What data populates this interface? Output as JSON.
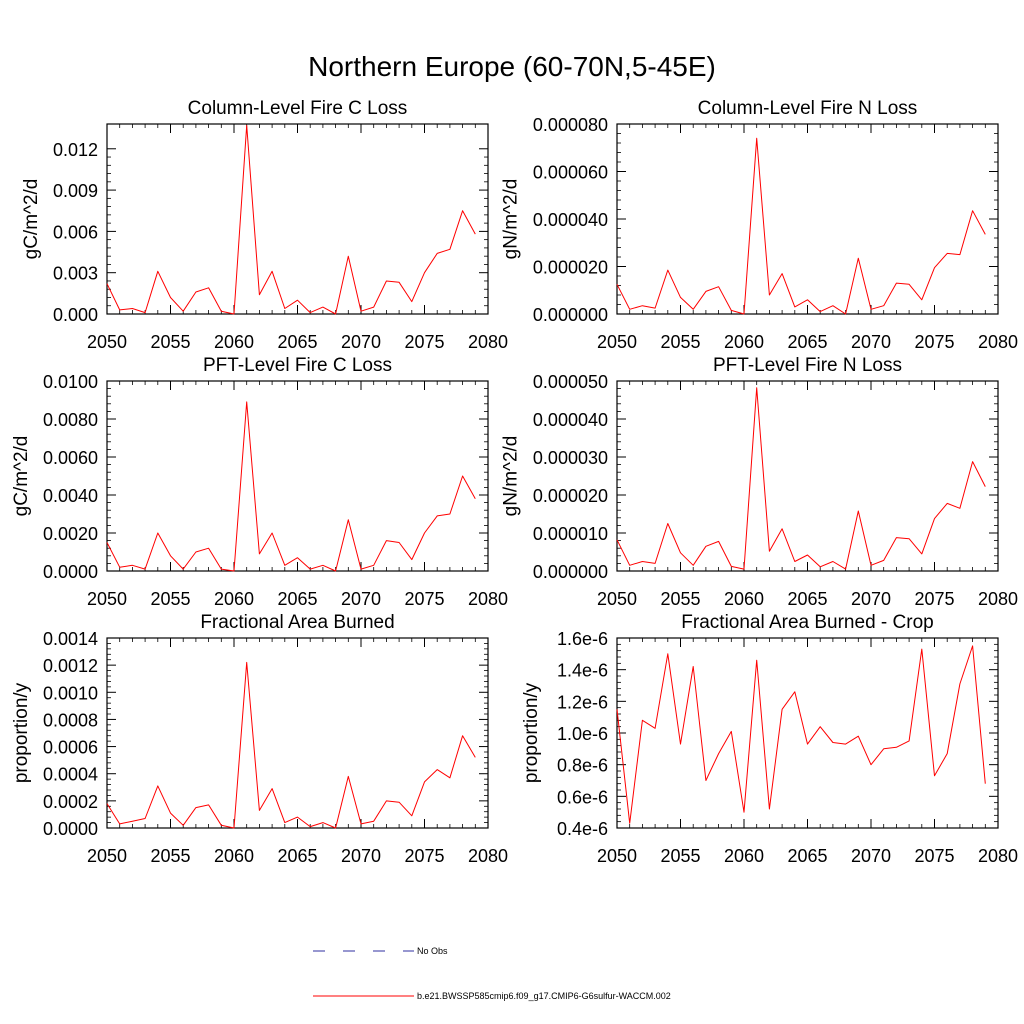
{
  "figure_title": "Northern Europe (60-70N,5-45E)",
  "legend": [
    {
      "label": "No Obs",
      "color": "#2f2fa0",
      "dash": true
    },
    {
      "label": "b.e21.BWSSP585cmip6.f09_g17.CMIP6-G6sulfur-WACCM.002",
      "color": "#ff0000",
      "dash": false
    }
  ],
  "chart_data": [
    {
      "type": "line",
      "title": "Column-Level Fire C Loss",
      "ylabel": "gC/m^2/d",
      "xlabel": "",
      "xlim": [
        2050,
        2080
      ],
      "xticks": [
        2050,
        2055,
        2060,
        2065,
        2070,
        2075,
        2080
      ],
      "ylim": [
        0,
        0.0138
      ],
      "yticks": [
        0,
        0.003,
        0.006,
        0.009,
        0.012
      ],
      "ytick_labels": [
        "0.000",
        "0.003",
        "0.006",
        "0.009",
        "0.012"
      ],
      "x": [
        2050,
        2051,
        2052,
        2053,
        2054,
        2055,
        2056,
        2057,
        2058,
        2059,
        2060,
        2061,
        2062,
        2063,
        2064,
        2065,
        2066,
        2067,
        2068,
        2069,
        2070,
        2071,
        2072,
        2073,
        2074,
        2075,
        2076,
        2077,
        2078,
        2079
      ],
      "series": [
        {
          "name": "b.e21.BWSSP585cmip6.f09_g17.CMIP6-G6sulfur-WACCM.002",
          "color": "#ff0000",
          "values": [
            0.0022,
            0.0003,
            0.0004,
            0.0001,
            0.0031,
            0.0012,
            0.0002,
            0.0016,
            0.0019,
            0.0002,
            0.0,
            0.0137,
            0.0014,
            0.0031,
            0.0004,
            0.001,
            0.0001,
            0.0005,
            0.0,
            0.0042,
            0.0002,
            0.0005,
            0.0024,
            0.0023,
            0.0009,
            0.003,
            0.0044,
            0.0047,
            0.0075,
            0.0058
          ]
        }
      ]
    },
    {
      "type": "line",
      "title": "Column-Level Fire N Loss",
      "ylabel": "gN/m^2/d",
      "xlabel": "",
      "xlim": [
        2050,
        2080
      ],
      "xticks": [
        2050,
        2055,
        2060,
        2065,
        2070,
        2075,
        2080
      ],
      "ylim": [
        0,
        8e-05
      ],
      "yticks": [
        0,
        2e-05,
        4e-05,
        6e-05,
        8e-05
      ],
      "ytick_labels": [
        "0.000000",
        "0.000020",
        "0.000040",
        "0.000060",
        "0.000080"
      ],
      "x": [
        2050,
        2051,
        2052,
        2053,
        2054,
        2055,
        2056,
        2057,
        2058,
        2059,
        2060,
        2061,
        2062,
        2063,
        2064,
        2065,
        2066,
        2067,
        2068,
        2069,
        2070,
        2071,
        2072,
        2073,
        2074,
        2075,
        2076,
        2077,
        2078,
        2079
      ],
      "series": [
        {
          "name": "b.e21.BWSSP585cmip6.f09_g17.CMIP6-G6sulfur-WACCM.002",
          "color": "#ff0000",
          "values": [
            1.25e-05,
            2e-06,
            3.5e-06,
            2.5e-06,
            1.85e-05,
            7e-06,
            2e-06,
            9.5e-06,
            1.15e-05,
            1.5e-06,
            0.0,
            7.4e-05,
            8e-06,
            1.7e-05,
            3e-06,
            6e-06,
            1e-06,
            3.5e-06,
            0.0,
            2.35e-05,
            2e-06,
            3.5e-06,
            1.3e-05,
            1.25e-05,
            6e-06,
            1.95e-05,
            2.55e-05,
            2.5e-05,
            4.35e-05,
            3.35e-05
          ]
        }
      ]
    },
    {
      "type": "line",
      "title": "PFT-Level Fire C Loss",
      "ylabel": "gC/m^2/d",
      "xlabel": "",
      "xlim": [
        2050,
        2080
      ],
      "xticks": [
        2050,
        2055,
        2060,
        2065,
        2070,
        2075,
        2080
      ],
      "ylim": [
        0,
        0.01
      ],
      "yticks": [
        0,
        0.002,
        0.004,
        0.006,
        0.008,
        0.01
      ],
      "ytick_labels": [
        "0.0000",
        "0.0020",
        "0.0040",
        "0.0060",
        "0.0080",
        "0.0100"
      ],
      "x": [
        2050,
        2051,
        2052,
        2053,
        2054,
        2055,
        2056,
        2057,
        2058,
        2059,
        2060,
        2061,
        2062,
        2063,
        2064,
        2065,
        2066,
        2067,
        2068,
        2069,
        2070,
        2071,
        2072,
        2073,
        2074,
        2075,
        2076,
        2077,
        2078,
        2079
      ],
      "series": [
        {
          "name": "b.e21.BWSSP585cmip6.f09_g17.CMIP6-G6sulfur-WACCM.002",
          "color": "#ff0000",
          "values": [
            0.0015,
            0.0002,
            0.0003,
            0.0001,
            0.002,
            0.0008,
            0.0001,
            0.001,
            0.0012,
            0.0001,
            0.0,
            0.0089,
            0.0009,
            0.002,
            0.0003,
            0.0007,
            0.0001,
            0.0003,
            0.0,
            0.0027,
            0.0001,
            0.0003,
            0.0016,
            0.0015,
            0.0006,
            0.002,
            0.0029,
            0.003,
            0.005,
            0.0038
          ]
        }
      ]
    },
    {
      "type": "line",
      "title": "PFT-Level Fire N Loss",
      "ylabel": "gN/m^2/d",
      "xlabel": "",
      "xlim": [
        2050,
        2080
      ],
      "xticks": [
        2050,
        2055,
        2060,
        2065,
        2070,
        2075,
        2080
      ],
      "ylim": [
        0,
        5e-05
      ],
      "yticks": [
        0,
        1e-05,
        2e-05,
        3e-05,
        4e-05,
        5e-05
      ],
      "ytick_labels": [
        "0.000000",
        "0.000010",
        "0.000020",
        "0.000030",
        "0.000040",
        "0.000050"
      ],
      "x": [
        2050,
        2051,
        2052,
        2053,
        2054,
        2055,
        2056,
        2057,
        2058,
        2059,
        2060,
        2061,
        2062,
        2063,
        2064,
        2065,
        2066,
        2067,
        2068,
        2069,
        2070,
        2071,
        2072,
        2073,
        2074,
        2075,
        2076,
        2077,
        2078,
        2079
      ],
      "series": [
        {
          "name": "b.e21.BWSSP585cmip6.f09_g17.CMIP6-G6sulfur-WACCM.002",
          "color": "#ff0000",
          "values": [
            8.2e-06,
            1.5e-06,
            2.5e-06,
            2e-06,
            1.25e-05,
            4.8e-06,
            1.5e-06,
            6.5e-06,
            7.8e-06,
            1.2e-06,
            5e-07,
            4.82e-05,
            5.2e-06,
            1.11e-05,
            2.5e-06,
            4.2e-06,
            1.1e-06,
            2.5e-06,
            5e-07,
            1.58e-05,
            1.5e-06,
            2.8e-06,
            8.8e-06,
            8.5e-06,
            4.5e-06,
            1.38e-05,
            1.78e-05,
            1.65e-05,
            2.88e-05,
            2.22e-05
          ]
        }
      ]
    },
    {
      "type": "line",
      "title": "Fractional Area Burned",
      "ylabel": "proportion/y",
      "xlabel": "",
      "xlim": [
        2050,
        2080
      ],
      "xticks": [
        2050,
        2055,
        2060,
        2065,
        2070,
        2075,
        2080
      ],
      "ylim": [
        0,
        0.0014
      ],
      "yticks": [
        0,
        0.0002,
        0.0004,
        0.0006,
        0.0008,
        0.001,
        0.0012,
        0.0014
      ],
      "ytick_labels": [
        "0.0000",
        "0.0002",
        "0.0004",
        "0.0006",
        "0.0008",
        "0.0010",
        "0.0012",
        "0.0014"
      ],
      "x": [
        2050,
        2051,
        2052,
        2053,
        2054,
        2055,
        2056,
        2057,
        2058,
        2059,
        2060,
        2061,
        2062,
        2063,
        2064,
        2065,
        2066,
        2067,
        2068,
        2069,
        2070,
        2071,
        2072,
        2073,
        2074,
        2075,
        2076,
        2077,
        2078,
        2079
      ],
      "series": [
        {
          "name": "b.e21.BWSSP585cmip6.f09_g17.CMIP6-G6sulfur-WACCM.002",
          "color": "#ff0000",
          "values": [
            0.00018,
            3e-05,
            5e-05,
            7e-05,
            0.00031,
            0.00011,
            2e-05,
            0.00015,
            0.00017,
            2e-05,
            0.0,
            0.00122,
            0.00013,
            0.00029,
            4e-05,
            8e-05,
            1e-05,
            4e-05,
            0.0,
            0.00038,
            3e-05,
            5e-05,
            0.0002,
            0.00019,
            9e-05,
            0.00034,
            0.00043,
            0.00037,
            0.00068,
            0.00052
          ]
        }
      ]
    },
    {
      "type": "line",
      "title": "Fractional Area Burned - Crop",
      "ylabel": "proportion/y",
      "xlabel": "",
      "xlim": [
        2050,
        2080
      ],
      "xticks": [
        2050,
        2055,
        2060,
        2065,
        2070,
        2075,
        2080
      ],
      "ylim": [
        4e-07,
        1.6e-06
      ],
      "yticks": [
        4e-07,
        6e-07,
        8e-07,
        1e-06,
        1.2e-06,
        1.4e-06,
        1.6e-06
      ],
      "ytick_labels": [
        "0.4e-6",
        "0.6e-6",
        "0.8e-6",
        "1.0e-6",
        "1.2e-6",
        "1.4e-6",
        "1.6e-6"
      ],
      "x": [
        2050,
        2051,
        2052,
        2053,
        2054,
        2055,
        2056,
        2057,
        2058,
        2059,
        2060,
        2061,
        2062,
        2063,
        2064,
        2065,
        2066,
        2067,
        2068,
        2069,
        2070,
        2071,
        2072,
        2073,
        2074,
        2075,
        2076,
        2077,
        2078,
        2079
      ],
      "series": [
        {
          "name": "b.e21.BWSSP585cmip6.f09_g17.CMIP6-G6sulfur-WACCM.002",
          "color": "#ff0000",
          "values": [
            1.15e-06,
            4.3e-07,
            1.08e-06,
            1.03e-06,
            1.5e-06,
            9.3e-07,
            1.42e-06,
            7e-07,
            8.7e-07,
            1.01e-06,
            5e-07,
            1.46e-06,
            5.2e-07,
            1.15e-06,
            1.26e-06,
            9.3e-07,
            1.04e-06,
            9.4e-07,
            9.3e-07,
            9.8e-07,
            8e-07,
            9e-07,
            9.1e-07,
            9.5e-07,
            1.53e-06,
            7.3e-07,
            8.7e-07,
            1.31e-06,
            1.55e-06,
            6.8e-07
          ]
        }
      ]
    }
  ]
}
